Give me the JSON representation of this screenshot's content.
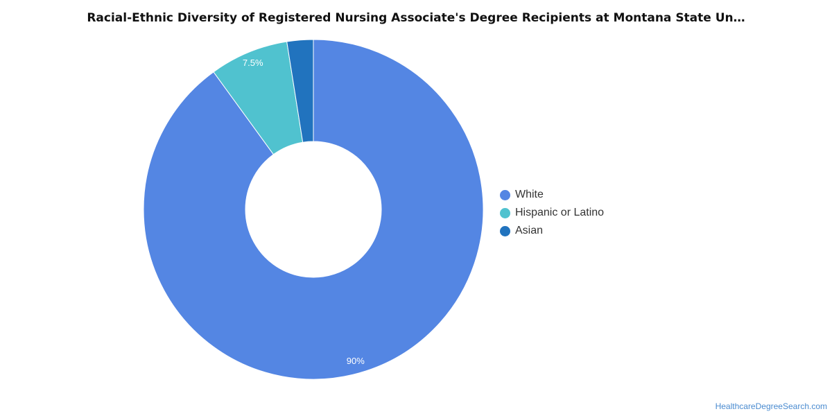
{
  "chart_data": {
    "type": "pie",
    "title": "Racial-Ethnic Diversity of Registered Nursing Associate's Degree Recipients at Montana State Un…",
    "categories": [
      "White",
      "Hispanic or Latino",
      "Asian"
    ],
    "values": [
      90,
      7.5,
      2.5
    ],
    "data_labels": [
      "90%",
      "7.5%",
      ""
    ],
    "colors": [
      "#5486e3",
      "#50c2cf",
      "#2173be"
    ],
    "legend_position": "right"
  },
  "source": "HealthcareDegreeSearch.com"
}
